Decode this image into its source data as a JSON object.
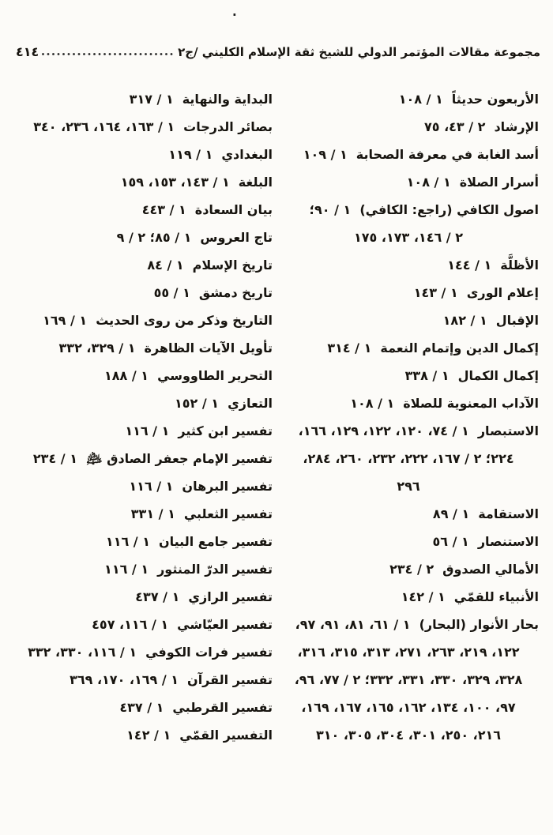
{
  "page": {
    "top_mark": ".",
    "header": {
      "title": "مجموعة مقالات المؤتمر الدولي للشيخ ثقة الإسلام الكليني /ج٢",
      "page_number": "٤١٤"
    }
  },
  "index": {
    "right_column": [
      {
        "title": "الأربعون حديثاً",
        "refs": [
          "١ / ١٠٨"
        ]
      },
      {
        "title": "الإرشاد",
        "refs": [
          "٢ / ٤٣، ٧٥"
        ]
      },
      {
        "title": "أسد الغابة في معرفة الصحابة",
        "refs": [
          "١ / ١٠٩"
        ]
      },
      {
        "title": "أسرار الصلاة",
        "refs": [
          "١ / ١٠٨"
        ]
      },
      {
        "title": "اصول الكافي (راجع: الكافي)",
        "refs": [
          "١ / ٩٠؛",
          "٢ / ١٤٦، ١٧٣، ١٧٥"
        ]
      },
      {
        "title": "الأظلَّة",
        "refs": [
          "١ / ١٤٤"
        ]
      },
      {
        "title": "إعلام الورى",
        "refs": [
          "١ / ١٤٣"
        ]
      },
      {
        "title": "الإقبال",
        "refs": [
          "١ / ١٨٢"
        ]
      },
      {
        "title": "إكمال الدين وإتمام النعمة",
        "refs": [
          "١ / ٣١٤"
        ]
      },
      {
        "title": "إكمال الكمال",
        "refs": [
          "١ / ٣٣٨"
        ]
      },
      {
        "title": "الآداب المعنوية للصلاة",
        "refs": [
          "١ / ١٠٨"
        ]
      },
      {
        "title": "الاستبصار",
        "refs": [
          "١ / ٧٤، ١٢٠، ١٢٢، ١٢٩، ١٦٦،",
          "٢٢٤؛ ٢ / ١٦٧، ٢٢٢، ٢٣٢، ٢٦٠، ٢٨٤،",
          "٢٩٦"
        ]
      },
      {
        "title": "الاستقامة",
        "refs": [
          "١ / ٨٩"
        ]
      },
      {
        "title": "الاستنصار",
        "refs": [
          "١ / ٥٦"
        ]
      },
      {
        "title": "الأمالي الصدوق",
        "refs": [
          "٢ / ٢٣٤"
        ]
      },
      {
        "title": "الأنبياء للقمّي",
        "refs": [
          "١ / ١٤٢"
        ]
      },
      {
        "title": "بحار الأنوار (البحار)",
        "refs": [
          "١ / ٦١، ٨١، ٩١، ٩٧،",
          "١٢٢، ٢١٩، ٢٦٣، ٢٧١، ٣١٣، ٣١٥، ٣١٦،",
          "٣٢٨، ٣٢٩، ٣٣٠، ٣٣١، ٣٣٢؛ ٢ / ٧٧، ٩٦،",
          "٩٧، ١٠٠، ١٣٤، ١٦٢، ١٦٥، ١٦٧، ١٦٩،",
          "٢١٦، ٢٥٠، ٣٠١، ٣٠٤، ٣٠٥، ٣١٠"
        ]
      }
    ],
    "left_column": [
      {
        "title": "البداية والنهاية",
        "refs": [
          "١ / ٣١٧"
        ]
      },
      {
        "title": "بصائر الدرجات",
        "refs": [
          "١ / ١٦٣، ١٦٤، ٢٣٦، ٣٤٠"
        ]
      },
      {
        "title": "البغدادي",
        "refs": [
          "١ / ١١٩"
        ]
      },
      {
        "title": "البلغة",
        "refs": [
          "١ / ١٤٣، ١٥٣، ١٥٩"
        ]
      },
      {
        "title": "بيان السعادة",
        "refs": [
          "١ / ٤٤٣"
        ]
      },
      {
        "title": "تاج العروس",
        "refs": [
          "١ / ٨٥؛ ٢ / ٩"
        ]
      },
      {
        "title": "تاريخ الإسلام",
        "refs": [
          "١ / ٨٤"
        ]
      },
      {
        "title": "تاريخ دمشق",
        "refs": [
          "١ / ٥٥"
        ]
      },
      {
        "title": "التاريخ وذكر من روى الحديث",
        "refs": [
          "١ / ١٦٩"
        ]
      },
      {
        "title": "تأويل الآيات الظاهرة",
        "refs": [
          "١ / ٣٢٩، ٣٣٢"
        ]
      },
      {
        "title": "التحرير الطاووسي",
        "refs": [
          "١ / ١٨٨"
        ]
      },
      {
        "title": "التعازي",
        "refs": [
          "١ / ١٥٢"
        ]
      },
      {
        "title": "تفسير ابن كثير",
        "refs": [
          "١ / ١١٦"
        ]
      },
      {
        "title": "تفسير الإمام جعفر الصادق ﵇",
        "refs": [
          "١ / ٢٣٤"
        ]
      },
      {
        "title": "تفسير البرهان",
        "refs": [
          "١ / ١١٦"
        ]
      },
      {
        "title": "تفسير الثعلبي",
        "refs": [
          "١ / ٣٣١"
        ]
      },
      {
        "title": "تفسير جامع البيان",
        "refs": [
          "١ / ١١٦"
        ]
      },
      {
        "title": "تفسير الدرّ المنثور",
        "refs": [
          "١ / ١١٦"
        ]
      },
      {
        "title": "تفسير الرازي",
        "refs": [
          "١ / ٤٣٧"
        ]
      },
      {
        "title": "تفسير العيّاشي",
        "refs": [
          "١ / ١١٦، ٤٥٧"
        ]
      },
      {
        "title": "تفسير فرات الكوفي",
        "refs": [
          "١ / ١١٦، ٣٣٠، ٣٣٢"
        ]
      },
      {
        "title": "تفسير القرآن",
        "refs": [
          "١ / ١٦٩، ١٧٠، ٣٦٩"
        ]
      },
      {
        "title": "تفسير القرطبي",
        "refs": [
          "١ / ٤٣٧"
        ]
      },
      {
        "title": "التفسير القمّي",
        "refs": [
          "١ / ١٤٢"
        ]
      }
    ]
  }
}
